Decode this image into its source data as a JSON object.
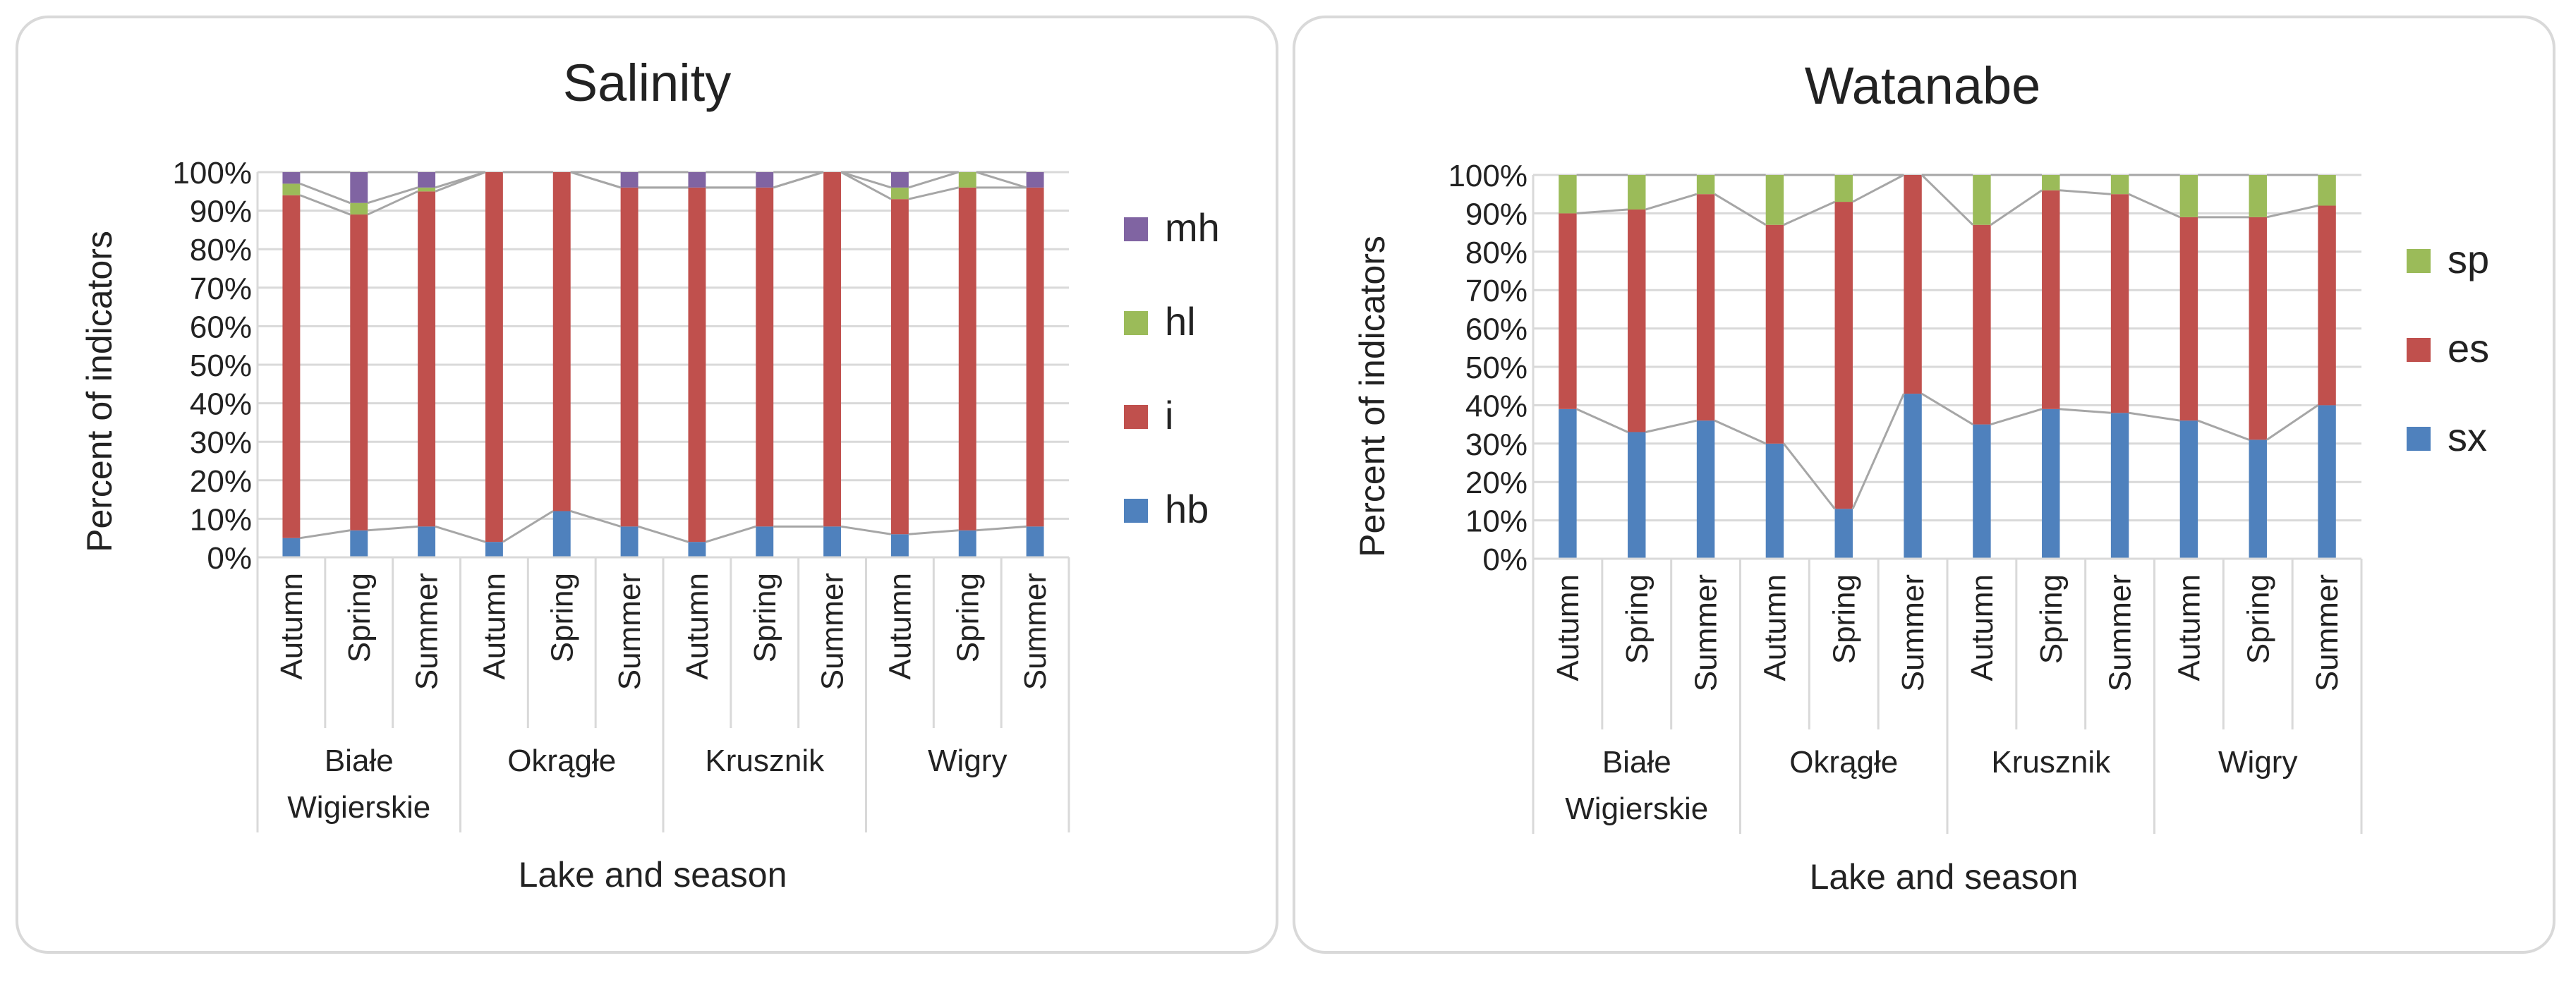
{
  "charts": [
    {
      "title": "Salinity",
      "ylabel": "Percent of indicators",
      "xlabel": "Lake and season",
      "yticks": [
        "0%",
        "10%",
        "20%",
        "30%",
        "40%",
        "50%",
        "60%",
        "70%",
        "80%",
        "90%",
        "100%"
      ]
    },
    {
      "title": "Watanabe",
      "ylabel": "Percent of indicators",
      "xlabel": "Lake and season",
      "yticks": [
        "0%",
        "10%",
        "20%",
        "30%",
        "40%",
        "50%",
        "60%",
        "70%",
        "80%",
        "90%",
        "100%"
      ]
    }
  ],
  "chart_data": [
    {
      "type": "bar",
      "stacked": true,
      "percent": true,
      "title": "Salinity",
      "xlabel": "Lake and season",
      "ylabel": "Percent of indicators",
      "ylim": [
        0,
        100
      ],
      "legend_position": "right",
      "groups": [
        {
          "name": "Białe Wigierskie",
          "lines": [
            "Białe",
            "Wigierskie"
          ]
        },
        {
          "name": "Okrągłe",
          "lines": [
            "Okrągłe"
          ]
        },
        {
          "name": "Krusznik",
          "lines": [
            "Krusznik"
          ]
        },
        {
          "name": "Wigry",
          "lines": [
            "Wigry"
          ]
        }
      ],
      "categories": [
        "Autumn",
        "Spring",
        "Summer",
        "Autumn",
        "Spring",
        "Summer",
        "Autumn",
        "Spring",
        "Summer",
        "Autumn",
        "Spring",
        "Summer"
      ],
      "series": [
        {
          "name": "hb",
          "color": "#4f81bd",
          "values": [
            5,
            7,
            8,
            4,
            12,
            8,
            4,
            8,
            8,
            6,
            7,
            8
          ]
        },
        {
          "name": "i",
          "color": "#c0504d",
          "values": [
            89,
            82,
            87,
            96,
            88,
            88,
            92,
            88,
            92,
            87,
            89,
            88
          ]
        },
        {
          "name": "hl",
          "color": "#9bbb59",
          "values": [
            3,
            3,
            1,
            0,
            0,
            0,
            0,
            0,
            0,
            3,
            4,
            0
          ]
        },
        {
          "name": "mh",
          "color": "#8064a2",
          "values": [
            3,
            8,
            4,
            0,
            0,
            4,
            4,
            4,
            0,
            4,
            0,
            4
          ]
        }
      ]
    },
    {
      "type": "bar",
      "stacked": true,
      "percent": true,
      "title": "Watanabe",
      "xlabel": "Lake and season",
      "ylabel": "Percent of indicators",
      "ylim": [
        0,
        100
      ],
      "legend_position": "right",
      "groups": [
        {
          "name": "Białe Wigierskie",
          "lines": [
            "Białe",
            "Wigierskie"
          ]
        },
        {
          "name": "Okrągłe",
          "lines": [
            "Okrągłe"
          ]
        },
        {
          "name": "Krusznik",
          "lines": [
            "Krusznik"
          ]
        },
        {
          "name": "Wigry",
          "lines": [
            "Wigry"
          ]
        }
      ],
      "categories": [
        "Autumn",
        "Spring",
        "Summer",
        "Autumn",
        "Spring",
        "Summer",
        "Autumn",
        "Spring",
        "Summer",
        "Autumn",
        "Spring",
        "Summer"
      ],
      "series": [
        {
          "name": "sx",
          "color": "#4f81bd",
          "values": [
            39,
            33,
            36,
            30,
            13,
            43,
            35,
            39,
            38,
            36,
            31,
            40
          ]
        },
        {
          "name": "es",
          "color": "#c0504d",
          "values": [
            51,
            58,
            59,
            57,
            80,
            57,
            52,
            57,
            57,
            53,
            58,
            52
          ]
        },
        {
          "name": "sp",
          "color": "#9bbb59",
          "values": [
            10,
            9,
            5,
            13,
            7,
            0,
            13,
            4,
            5,
            11,
            11,
            8
          ]
        }
      ]
    }
  ]
}
